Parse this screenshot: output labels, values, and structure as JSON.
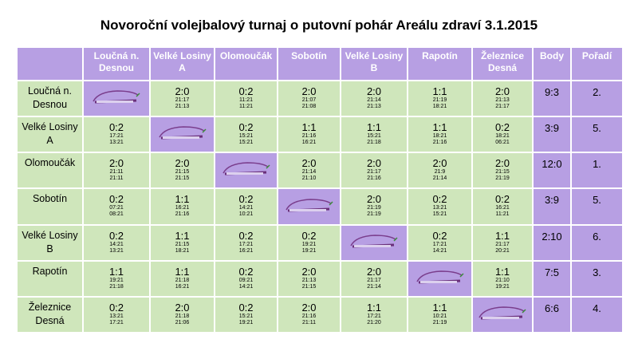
{
  "title": "Novoroční volejbalový turnaj o putovní pohár Areálu zdraví 3.1.2015",
  "table": {
    "columns": [
      "Loučná n. Desnou",
      "Velké Losiny A",
      "Olomoučák",
      "Sobotín",
      "Velké Losiny B",
      "Rapotín",
      "Železnice Desná",
      "Body",
      "Pořadí"
    ],
    "rows": [
      {
        "team": "Loučná n. Desnou",
        "results": [
          null,
          {
            "score": "2:0",
            "sets": [
              "21:17",
              "21:13"
            ]
          },
          {
            "score": "0:2",
            "sets": [
              "11:21",
              "11:21"
            ]
          },
          {
            "score": "2:0",
            "sets": [
              "21:07",
              "21:08"
            ]
          },
          {
            "score": "2:0",
            "sets": [
              "21:14",
              "21:13"
            ]
          },
          {
            "score": "1:1",
            "sets": [
              "21:19",
              "18:21"
            ]
          },
          {
            "score": "2:0",
            "sets": [
              "21:13",
              "21:17"
            ]
          }
        ],
        "points": "9:3",
        "rank": "2."
      },
      {
        "team": "Velké Losiny A",
        "results": [
          {
            "score": "0:2",
            "sets": [
              "17:21",
              "13:21"
            ]
          },
          null,
          {
            "score": "0:2",
            "sets": [
              "15:21",
              "15:21"
            ]
          },
          {
            "score": "1:1",
            "sets": [
              "21:16",
              "16:21"
            ]
          },
          {
            "score": "1:1",
            "sets": [
              "15:21",
              "21:18"
            ]
          },
          {
            "score": "1:1",
            "sets": [
              "18:21",
              "21:16"
            ]
          },
          {
            "score": "0:2",
            "sets": [
              "18:21",
              "06:21"
            ]
          }
        ],
        "points": "3:9",
        "rank": "5."
      },
      {
        "team": "Olomoučák",
        "results": [
          {
            "score": "2:0",
            "sets": [
              "21:11",
              "21:11"
            ]
          },
          {
            "score": "2:0",
            "sets": [
              "21:15",
              "21:15"
            ]
          },
          null,
          {
            "score": "2:0",
            "sets": [
              "21:14",
              "21:10"
            ]
          },
          {
            "score": "2:0",
            "sets": [
              "21:17",
              "21:16"
            ]
          },
          {
            "score": "2:0",
            "sets": [
              "21:9",
              "21:14"
            ]
          },
          {
            "score": "2:0",
            "sets": [
              "21:15",
              "21:19"
            ]
          }
        ],
        "points": "12:0",
        "rank": "1."
      },
      {
        "team": "Sobotín",
        "results": [
          {
            "score": "0:2",
            "sets": [
              "07:21",
              "08:21"
            ]
          },
          {
            "score": "1:1",
            "sets": [
              "16:21",
              "21:16"
            ]
          },
          {
            "score": "0:2",
            "sets": [
              "14:21",
              "10:21"
            ]
          },
          null,
          {
            "score": "2:0",
            "sets": [
              "21:19",
              "21:19"
            ]
          },
          {
            "score": "0:2",
            "sets": [
              "13:21",
              "15:21"
            ]
          },
          {
            "score": "0:2",
            "sets": [
              "16:21",
              "11:21"
            ]
          }
        ],
        "points": "3:9",
        "rank": "5."
      },
      {
        "team": "Velké Losiny B",
        "results": [
          {
            "score": "0:2",
            "sets": [
              "14:21",
              "13:21"
            ]
          },
          {
            "score": "1:1",
            "sets": [
              "21:15",
              "18:21"
            ]
          },
          {
            "score": "0:2",
            "sets": [
              "17:21",
              "16:21"
            ]
          },
          {
            "score": "0:2",
            "sets": [
              "19:21",
              "19:21"
            ]
          },
          null,
          {
            "score": "0:2",
            "sets": [
              "17:21",
              "14:21"
            ]
          },
          {
            "score": "1:1",
            "sets": [
              "21:17",
              "20:21"
            ]
          }
        ],
        "points": "2:10",
        "rank": "6."
      },
      {
        "team": "Rapotín",
        "results": [
          {
            "score": "1:1",
            "sets": [
              "19:21",
              "21:18"
            ]
          },
          {
            "score": "1:1",
            "sets": [
              "21:18",
              "16:21"
            ]
          },
          {
            "score": "0:2",
            "sets": [
              "09:21",
              "14:21"
            ]
          },
          {
            "score": "2:0",
            "sets": [
              "21:13",
              "21:15"
            ]
          },
          {
            "score": "2:0",
            "sets": [
              "21:17",
              "21:14"
            ]
          },
          null,
          {
            "score": "1:1",
            "sets": [
              "21:10",
              "19:21"
            ]
          }
        ],
        "points": "7:5",
        "rank": "3."
      },
      {
        "team": "Železnice Desná",
        "results": [
          {
            "score": "0:2",
            "sets": [
              "13:21",
              "17:21"
            ]
          },
          {
            "score": "2:0",
            "sets": [
              "21:18",
              "21:06"
            ]
          },
          {
            "score": "0:2",
            "sets": [
              "15:21",
              "19:21"
            ]
          },
          {
            "score": "2:0",
            "sets": [
              "21:16",
              "21:11"
            ]
          },
          {
            "score": "1:1",
            "sets": [
              "17:21",
              "21:20"
            ]
          },
          {
            "score": "1:1",
            "sets": [
              "10:21",
              "21:19"
            ]
          },
          null
        ],
        "points": "6:6",
        "rank": "4."
      }
    ]
  }
}
